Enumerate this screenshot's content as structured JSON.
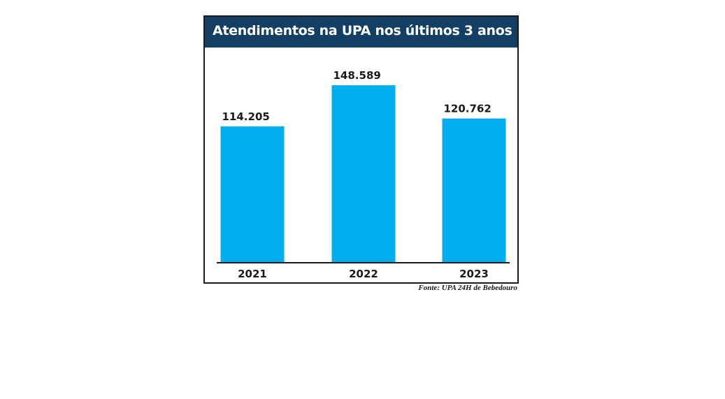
{
  "chart_data": {
    "type": "bar",
    "title": "Atendimentos na UPA nos últimos 3 anos",
    "categories": [
      "2021",
      "2022",
      "2023"
    ],
    "values": [
      114205,
      148589,
      120762
    ],
    "value_labels": [
      "114.205",
      "148.589",
      "120.762"
    ],
    "xlabel": "",
    "ylabel": "",
    "ylim": [
      0,
      165000
    ],
    "grid": false,
    "legend": "none",
    "colors": {
      "bar": "#00aeef",
      "header": "#123f63",
      "axis": "#1a1a1a"
    }
  },
  "source": "Fonte: UPA 24H de Bebedouro"
}
